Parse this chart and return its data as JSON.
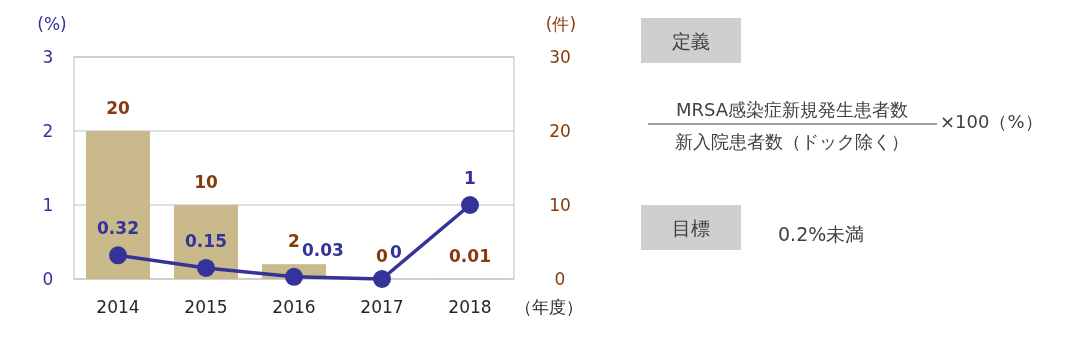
{
  "chart_data": {
    "type": "bar",
    "categories": [
      "2014",
      "2015",
      "2016",
      "2017",
      "2018"
    ],
    "series": [
      {
        "axis": "y2",
        "color": "#c9b98b",
        "values": [
          20,
          10,
          2,
          0,
          0.01
        ]
      },
      {
        "type": "line",
        "axis": "y",
        "color": "#333399",
        "marker": "circle",
        "values": [
          0.32,
          0.15,
          0.03,
          0,
          1
        ]
      }
    ],
    "ylim": [
      0,
      3
    ],
    "yticks": [
      0,
      1,
      2,
      3
    ],
    "y2lim": [
      0,
      30
    ],
    "y2ticks": [
      0,
      10,
      20,
      30
    ],
    "ylabel": "(%)",
    "y2label": "(件)",
    "xlabel": "（年度）",
    "grid": "y",
    "data_labels": true,
    "annotations": [
      "定義",
      "MRSA感染症新規発生患者数",
      "新入院患者数（ドック除く）",
      "×100（%）",
      "目標",
      "0.2%未満"
    ]
  }
}
